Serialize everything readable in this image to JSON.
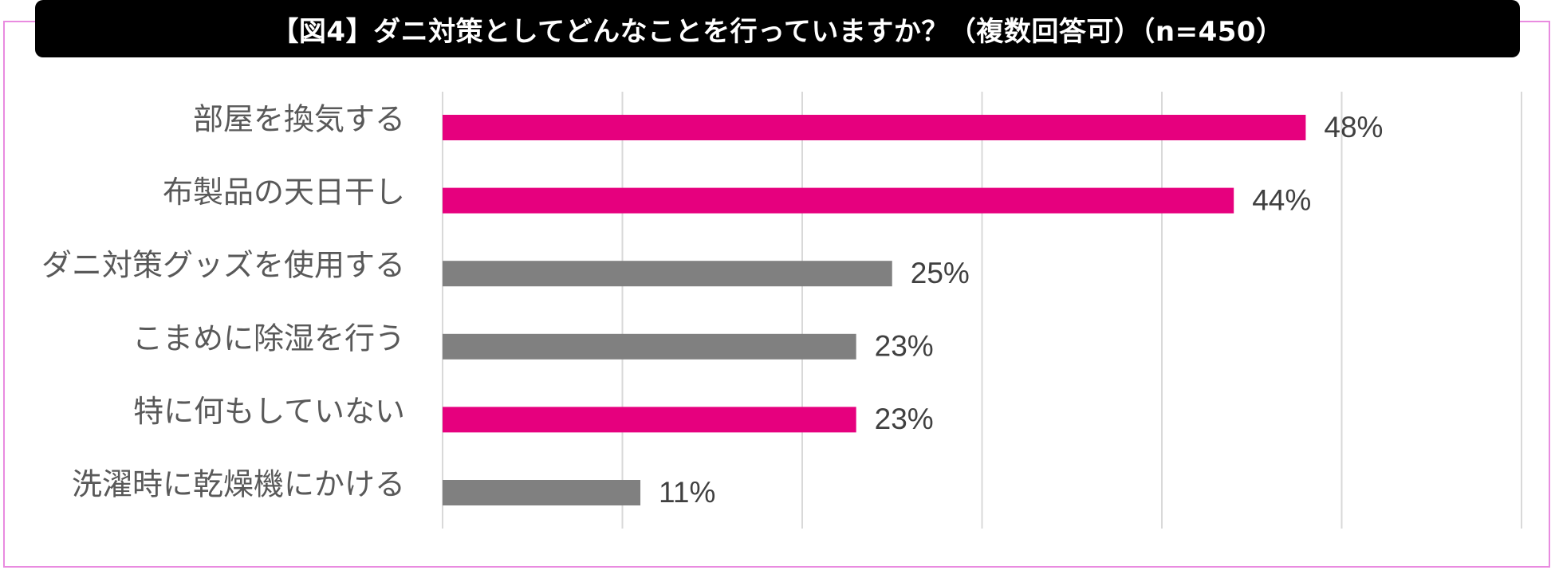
{
  "title": "【図4】ダニ対策としてどんなことを行っていますか？（複数回答可）（n=450）",
  "colors": {
    "highlight": "#e6007e",
    "normal": "#808080",
    "grid": "#d9d9d9",
    "frame": "#e98be0",
    "title_bg": "#000000"
  },
  "chart_data": {
    "type": "bar",
    "orientation": "horizontal",
    "title": "【図4】ダニ対策としてどんなことを行っていますか？（複数回答可）（n=450）",
    "categories": [
      "部屋を換気する",
      "布製品の天日干し",
      "ダニ対策グッズを使用する",
      "こまめに除湿を行う",
      "特に何もしていない",
      "洗濯時に乾燥機にかける"
    ],
    "values": [
      48,
      44,
      25,
      23,
      23,
      11
    ],
    "value_labels": [
      "48%",
      "44%",
      "25%",
      "23%",
      "23%",
      "11%"
    ],
    "highlighted": [
      true,
      true,
      false,
      false,
      true,
      false
    ],
    "xlim": [
      0,
      60
    ],
    "grid_step": 10,
    "grid": true,
    "legend": "none",
    "xlabel": "",
    "ylabel": ""
  }
}
